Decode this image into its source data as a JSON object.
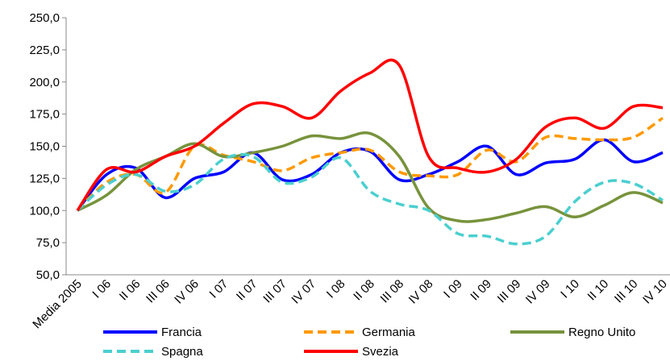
{
  "chart_data": {
    "type": "line",
    "categories": [
      "Media 2005",
      "I 06",
      "II 06",
      "III 06",
      "IV 06",
      "I 07",
      "II 07",
      "III 07",
      "IV 07",
      "I 08",
      "II 08",
      "III 08",
      "IV 08",
      "I 09",
      "II 09",
      "III 09",
      "IV 09",
      "I 10",
      "II 10",
      "III 10",
      "IV 10"
    ],
    "series": [
      {
        "name": "Francia",
        "color": "#0000ff",
        "dash": false,
        "values": [
          100,
          128,
          133,
          110,
          125,
          130,
          145,
          124,
          128,
          145,
          146,
          124,
          128,
          138,
          150,
          128,
          137,
          140,
          155,
          138,
          145
        ]
      },
      {
        "name": "Germania",
        "color": "#ff9900",
        "dash": true,
        "values": [
          100,
          122,
          128,
          114,
          150,
          143,
          138,
          131,
          141,
          145,
          147,
          130,
          127,
          128,
          147,
          138,
          157,
          156,
          155,
          157,
          172
        ]
      },
      {
        "name": "Regno Unito",
        "color": "#77933c",
        "dash": false,
        "values": [
          100,
          112,
          132,
          142,
          152,
          142,
          145,
          150,
          158,
          156,
          160,
          142,
          102,
          92,
          93,
          98,
          103,
          95,
          104,
          114,
          106
        ]
      },
      {
        "name": "Spagna",
        "color": "#4bcfcf",
        "dash": true,
        "values": [
          100,
          120,
          128,
          115,
          120,
          140,
          142,
          122,
          126,
          141,
          115,
          105,
          100,
          82,
          80,
          74,
          80,
          107,
          122,
          121,
          108
        ]
      },
      {
        "name": "Svezia",
        "color": "#ff0000",
        "dash": false,
        "values": [
          100,
          132,
          130,
          142,
          150,
          168,
          183,
          181,
          172,
          193,
          207,
          213,
          142,
          133,
          130,
          140,
          165,
          172,
          164,
          181,
          180
        ]
      }
    ],
    "ylim": [
      50,
      250
    ],
    "yticks": [
      {
        "value": 50,
        "label": "50,0"
      },
      {
        "value": 75,
        "label": "75,0"
      },
      {
        "value": 100,
        "label": "100,0"
      },
      {
        "value": 125,
        "label": "125,0"
      },
      {
        "value": 150,
        "label": "150,0"
      },
      {
        "value": 175,
        "label": "175,0"
      },
      {
        "value": 200,
        "label": "200,0"
      },
      {
        "value": 225,
        "label": "225,0"
      },
      {
        "value": 250,
        "label": "250,0"
      }
    ],
    "legend": "bottom"
  }
}
